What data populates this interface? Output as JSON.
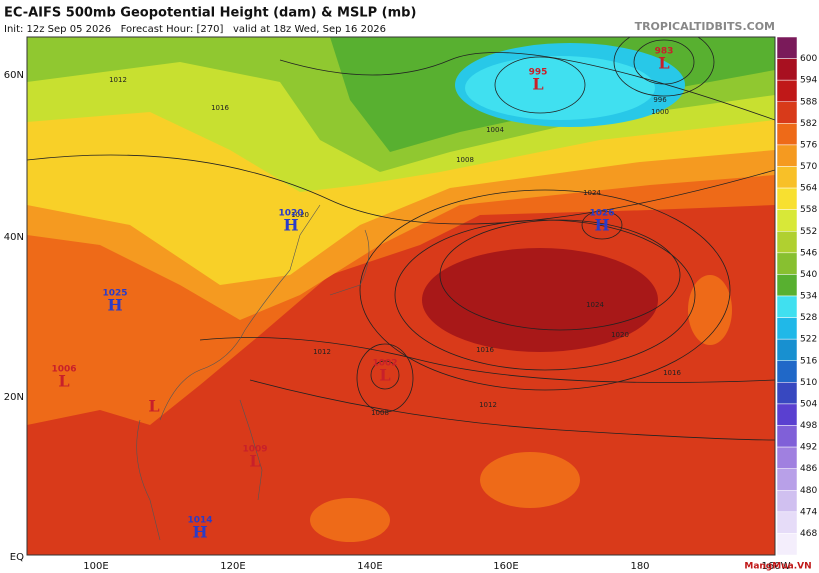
{
  "header": {
    "title": "EC-AIFS 500mb Geopotential Height (dam) & MSLP (mb)",
    "subtitle": "Init: 12z Sep 05 2026   Forecast Hour: [270]   valid at 18z Wed, Sep 16 2026",
    "site": "TROPICALTIDBITS.COM"
  },
  "map": {
    "lat_labels": [
      "60N",
      "40N",
      "20N",
      "EQ"
    ],
    "lon_labels": [
      "100E",
      "120E",
      "140E",
      "160E",
      "180",
      "160W"
    ],
    "centers": [
      {
        "letter": "L",
        "label": "995"
      },
      {
        "letter": "L",
        "label": "983"
      },
      {
        "letter": "H",
        "label": "1026"
      },
      {
        "letter": "H",
        "label": "1020"
      },
      {
        "letter": "H",
        "label": "1025"
      },
      {
        "letter": "L",
        "label": "1006"
      },
      {
        "letter": "L",
        "label": "1002"
      },
      {
        "letter": "L",
        "label": "1009"
      },
      {
        "letter": "H",
        "label": "1014"
      }
    ],
    "contour_labels": [
      "1012",
      "1016",
      "1008",
      "1024",
      "1024",
      "1020",
      "1016",
      "1012",
      "1012",
      "1008",
      "1016",
      "1020",
      "1004",
      "996",
      "1000"
    ]
  },
  "colorbar": {
    "labels": [
      "600",
      "594",
      "588",
      "582",
      "576",
      "570",
      "564",
      "558",
      "552",
      "546",
      "540",
      "534",
      "528",
      "522",
      "516",
      "510",
      "504",
      "498",
      "492",
      "486",
      "480",
      "474",
      "468"
    ]
  },
  "watermark": "MangMua.VN"
}
